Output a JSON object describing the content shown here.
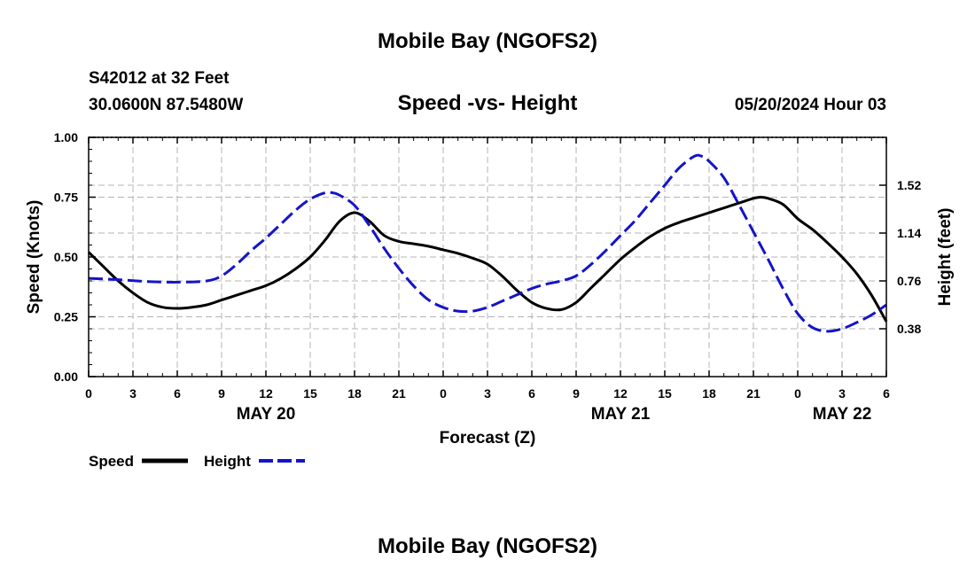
{
  "page": {
    "title_top": "Mobile Bay (NGOFS2)",
    "title_bottom": "Mobile Bay (NGOFS2)"
  },
  "info": {
    "station": "S42012 at 32 Feet",
    "coords": "30.0600N  87.5480W",
    "timestamp": "05/20/2024 Hour 03"
  },
  "colors": {
    "speed": "#000000",
    "height": "#1414c8",
    "grid": "#b4b4b4"
  },
  "chart_data": {
    "type": "line",
    "title": "Speed -vs- Height",
    "xlabel": "Forecast (Z)",
    "ylabel_left": "Speed (Knots)",
    "ylabel_right": "Height (feet)",
    "x_range_hours": [
      0,
      54
    ],
    "x_ticks": [
      {
        "h": 0,
        "label": "0"
      },
      {
        "h": 3,
        "label": "3"
      },
      {
        "h": 6,
        "label": "6"
      },
      {
        "h": 9,
        "label": "9"
      },
      {
        "h": 12,
        "label": "12"
      },
      {
        "h": 15,
        "label": "15"
      },
      {
        "h": 18,
        "label": "18"
      },
      {
        "h": 21,
        "label": "21"
      },
      {
        "h": 24,
        "label": "0"
      },
      {
        "h": 27,
        "label": "3"
      },
      {
        "h": 30,
        "label": "6"
      },
      {
        "h": 33,
        "label": "9"
      },
      {
        "h": 36,
        "label": "12"
      },
      {
        "h": 39,
        "label": "15"
      },
      {
        "h": 42,
        "label": "18"
      },
      {
        "h": 45,
        "label": "21"
      },
      {
        "h": 48,
        "label": "0"
      },
      {
        "h": 51,
        "label": "3"
      },
      {
        "h": 54,
        "label": "6"
      }
    ],
    "date_labels": [
      {
        "h": 12,
        "label": "MAY 20"
      },
      {
        "h": 36,
        "label": "MAY 21"
      },
      {
        "h": 51,
        "label": "MAY 22"
      }
    ],
    "y_left": {
      "range": [
        0,
        1
      ],
      "ticks": [
        0.0,
        0.25,
        0.5,
        0.75,
        1.0
      ],
      "tick_labels": [
        "0.00",
        "0.25",
        "0.50",
        "0.75",
        "1.00"
      ]
    },
    "y_right": {
      "range": [
        0.0,
        1.9
      ],
      "ticks": [
        0.38,
        0.76,
        1.14,
        1.52
      ],
      "tick_labels": [
        "0.38",
        "0.76",
        "1.14",
        "1.52"
      ]
    },
    "grid": true,
    "series": [
      {
        "name": "Speed",
        "axis": "left",
        "style": "solid",
        "points": [
          [
            0,
            0.52
          ],
          [
            1,
            0.46
          ],
          [
            2,
            0.4
          ],
          [
            3,
            0.35
          ],
          [
            4,
            0.31
          ],
          [
            5,
            0.29
          ],
          [
            6,
            0.285
          ],
          [
            7,
            0.29
          ],
          [
            8,
            0.3
          ],
          [
            9,
            0.32
          ],
          [
            10,
            0.34
          ],
          [
            11,
            0.36
          ],
          [
            12,
            0.38
          ],
          [
            13,
            0.41
          ],
          [
            14,
            0.45
          ],
          [
            15,
            0.5
          ],
          [
            16,
            0.57
          ],
          [
            17,
            0.65
          ],
          [
            18,
            0.685
          ],
          [
            19,
            0.65
          ],
          [
            20,
            0.59
          ],
          [
            21,
            0.565
          ],
          [
            22,
            0.555
          ],
          [
            23,
            0.545
          ],
          [
            24,
            0.53
          ],
          [
            25,
            0.515
          ],
          [
            26,
            0.495
          ],
          [
            27,
            0.47
          ],
          [
            28,
            0.42
          ],
          [
            29,
            0.36
          ],
          [
            30,
            0.31
          ],
          [
            31,
            0.285
          ],
          [
            32,
            0.28
          ],
          [
            33,
            0.31
          ],
          [
            34,
            0.37
          ],
          [
            35,
            0.43
          ],
          [
            36,
            0.49
          ],
          [
            37,
            0.54
          ],
          [
            38,
            0.585
          ],
          [
            39,
            0.62
          ],
          [
            40,
            0.645
          ],
          [
            41,
            0.665
          ],
          [
            42,
            0.685
          ],
          [
            43,
            0.705
          ],
          [
            44,
            0.725
          ],
          [
            45,
            0.745
          ],
          [
            45.5,
            0.75
          ],
          [
            46,
            0.745
          ],
          [
            47,
            0.72
          ],
          [
            48,
            0.66
          ],
          [
            49,
            0.615
          ],
          [
            50,
            0.56
          ],
          [
            51,
            0.5
          ],
          [
            52,
            0.43
          ],
          [
            53,
            0.34
          ],
          [
            54,
            0.23
          ]
        ]
      },
      {
        "name": "Height",
        "axis": "right",
        "style": "dashed",
        "points": [
          [
            0,
            0.78
          ],
          [
            2,
            0.77
          ],
          [
            4,
            0.755
          ],
          [
            6,
            0.75
          ],
          [
            8,
            0.76
          ],
          [
            9,
            0.8
          ],
          [
            10,
            0.89
          ],
          [
            11,
            1.0
          ],
          [
            12,
            1.1
          ],
          [
            13,
            1.21
          ],
          [
            14,
            1.32
          ],
          [
            15,
            1.41
          ],
          [
            16,
            1.46
          ],
          [
            16.5,
            1.46
          ],
          [
            17,
            1.44
          ],
          [
            18,
            1.36
          ],
          [
            19,
            1.2
          ],
          [
            20,
            1.02
          ],
          [
            21,
            0.86
          ],
          [
            22,
            0.72
          ],
          [
            23,
            0.61
          ],
          [
            24,
            0.55
          ],
          [
            25,
            0.52
          ],
          [
            26,
            0.52
          ],
          [
            27,
            0.55
          ],
          [
            28,
            0.6
          ],
          [
            29,
            0.65
          ],
          [
            30,
            0.7
          ],
          [
            31,
            0.735
          ],
          [
            32,
            0.76
          ],
          [
            33,
            0.8
          ],
          [
            34,
            0.89
          ],
          [
            35,
            1.0
          ],
          [
            36,
            1.12
          ],
          [
            37,
            1.24
          ],
          [
            38,
            1.38
          ],
          [
            39,
            1.52
          ],
          [
            40,
            1.66
          ],
          [
            41,
            1.75
          ],
          [
            41.5,
            1.75
          ],
          [
            42,
            1.71
          ],
          [
            43,
            1.58
          ],
          [
            44,
            1.37
          ],
          [
            45,
            1.15
          ],
          [
            46,
            0.93
          ],
          [
            47,
            0.7
          ],
          [
            48,
            0.5
          ],
          [
            49,
            0.39
          ],
          [
            50,
            0.36
          ],
          [
            51,
            0.38
          ],
          [
            52,
            0.43
          ],
          [
            53,
            0.49
          ],
          [
            54,
            0.57
          ]
        ]
      }
    ],
    "legend": [
      {
        "label": "Speed",
        "style": "solid"
      },
      {
        "label": "Height",
        "style": "dashed"
      }
    ]
  }
}
